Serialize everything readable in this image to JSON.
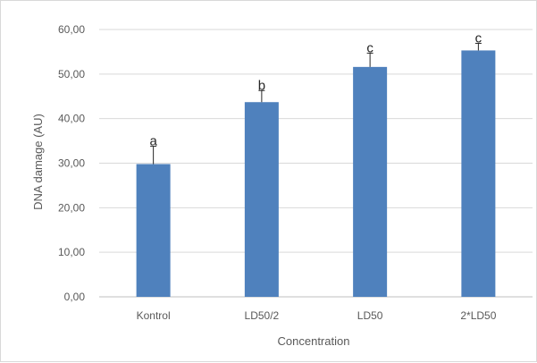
{
  "chart_data": {
    "type": "bar",
    "categories": [
      "Kontrol",
      "LD50/2",
      "LD50",
      "2*LD50"
    ],
    "values": [
      29.8,
      43.7,
      51.6,
      55.3
    ],
    "errors": [
      4.0,
      2.6,
      3.1,
      1.6
    ],
    "significance_labels": [
      "a",
      "b",
      "c",
      "c"
    ],
    "xlabel": "Concentration",
    "ylabel": "DNA damage (AU)",
    "ylim": [
      0,
      60
    ],
    "yticks": [
      0,
      10,
      20,
      30,
      40,
      50,
      60
    ],
    "ytick_labels": [
      "0,00",
      "10,00",
      "20,00",
      "30,00",
      "40,00",
      "50,00",
      "60,00"
    ],
    "grid": true,
    "bar_color": "#4f81bd",
    "grid_color": "#d9d9d9"
  }
}
